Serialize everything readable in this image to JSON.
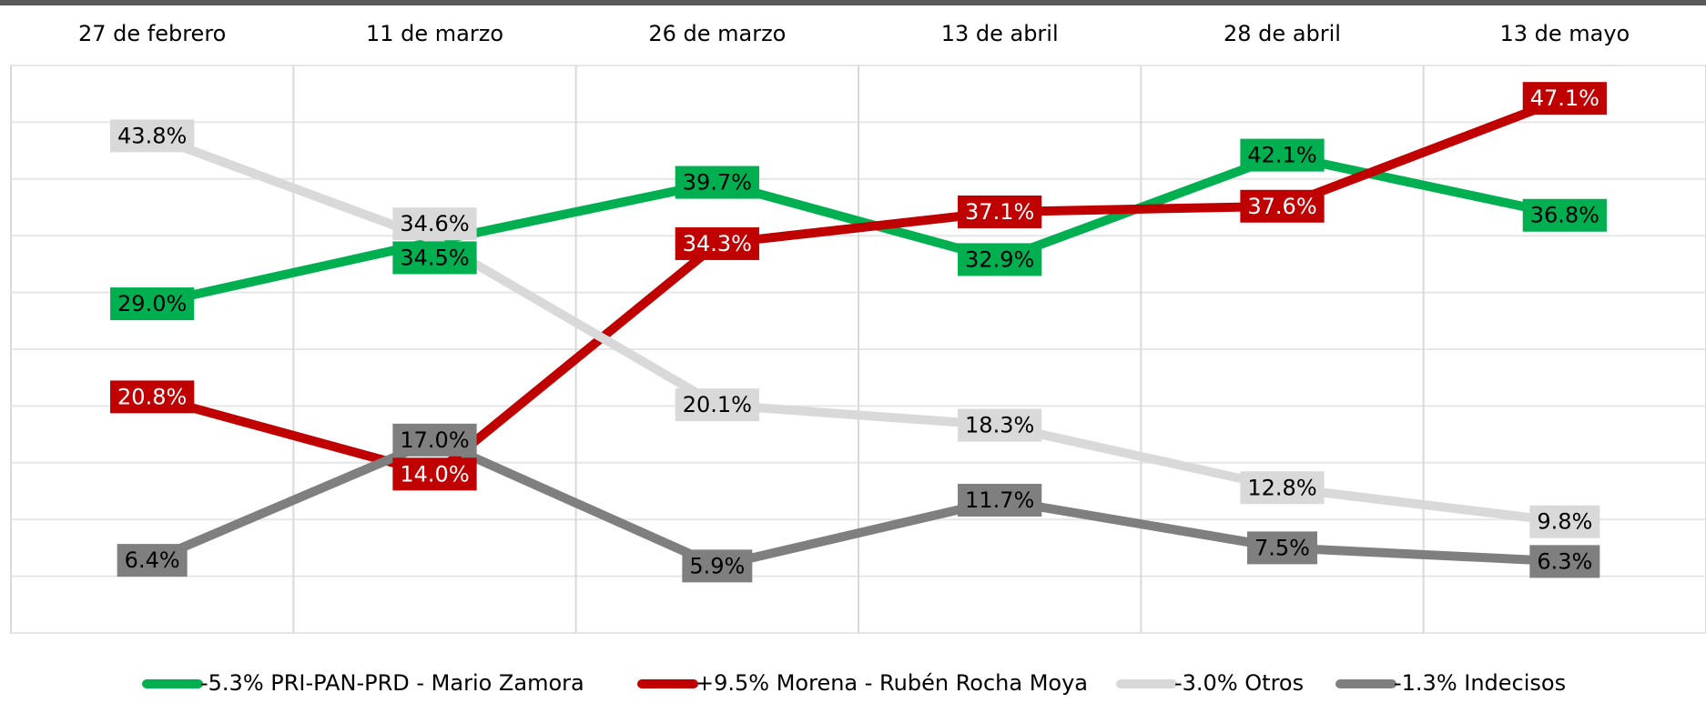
{
  "chart_data": {
    "type": "line",
    "categories": [
      "27 de febrero",
      "11 de marzo",
      "26 de marzo",
      "13 de abril",
      "28 de abril",
      "13 de mayo"
    ],
    "series": [
      {
        "name": "-5.3% PRI-PAN-PRD - Mario Zamora",
        "color": "#00b050",
        "label_color": "#000000",
        "values": [
          29.0,
          34.5,
          39.7,
          32.9,
          42.1,
          36.8
        ],
        "value_labels": [
          "29.0%",
          "34.5%",
          "39.7%",
          "32.9%",
          "42.1%",
          "36.8%"
        ]
      },
      {
        "name": "+9.5% Morena - Rubén Rocha Moya",
        "color": "#c00000",
        "label_color": "#ffffff",
        "values": [
          20.8,
          14.0,
          34.3,
          37.1,
          37.6,
          47.1
        ],
        "value_labels": [
          "20.8%",
          "14.0%",
          "34.3%",
          "37.1%",
          "37.6%",
          "47.1%"
        ]
      },
      {
        "name": "-3.0% Otros",
        "color": "#d9d9d9",
        "label_color": "#000000",
        "values": [
          43.8,
          34.6,
          20.1,
          18.3,
          12.8,
          9.8
        ],
        "value_labels": [
          "43.8%",
          "34.6%",
          "20.1%",
          "18.3%",
          "12.8%",
          "9.8%"
        ]
      },
      {
        "name": "-1.3% Indecisos",
        "color": "#7f7f7f",
        "label_color": "#000000",
        "values": [
          6.4,
          17.0,
          5.9,
          11.7,
          7.5,
          6.3
        ],
        "value_labels": [
          "6.4%",
          "17.0%",
          "5.9%",
          "11.7%",
          "7.5%",
          "6.3%"
        ]
      }
    ],
    "ylim": [
      0,
      50
    ],
    "yticks": [
      0,
      5,
      10,
      15,
      20,
      25,
      30,
      35,
      40,
      45,
      50
    ],
    "grid": true
  }
}
